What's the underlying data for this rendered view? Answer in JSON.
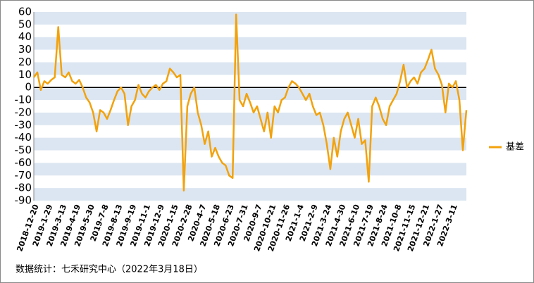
{
  "chart_data": {
    "type": "line",
    "categories": [
      "2018-12-20",
      null,
      null,
      null,
      "2019-1-29",
      null,
      null,
      null,
      "2019-3-13",
      null,
      null,
      null,
      "2019-4-19",
      null,
      null,
      null,
      "2019-5-30",
      null,
      null,
      null,
      "2019-7-8",
      null,
      null,
      null,
      "2019-8-13",
      null,
      null,
      null,
      "2019-9-19",
      null,
      null,
      null,
      "2019-11-1",
      null,
      null,
      null,
      "2019-12-9",
      null,
      null,
      null,
      "2020-1-15",
      null,
      null,
      null,
      "2020-2-28",
      null,
      null,
      null,
      "2020-4-7",
      null,
      null,
      null,
      "2020-5-18",
      null,
      null,
      null,
      "2020-6-23",
      null,
      null,
      null,
      "2020-7-31",
      null,
      null,
      null,
      "2020-9-7",
      null,
      null,
      null,
      "2020-10-21",
      null,
      null,
      null,
      "2020-11-26",
      null,
      null,
      null,
      "2021-1-4",
      null,
      null,
      null,
      "2021-2-9",
      null,
      null,
      null,
      "2021-3-24",
      null,
      null,
      null,
      "2021-4-30",
      null,
      null,
      null,
      "2021-6-10",
      null,
      null,
      null,
      "2021-7-19",
      null,
      null,
      null,
      "2021-8-24",
      null,
      null,
      null,
      "2021-10-8",
      null,
      null,
      null,
      "2021-11-15",
      null,
      null,
      null,
      "2021-12-21",
      null,
      null,
      null,
      "2022-1-27",
      null,
      null,
      null,
      "2022-3-11",
      null,
      null,
      null,
      null
    ],
    "series": [
      {
        "name": "基差",
        "color": "#f2a20c",
        "values": [
          8,
          12,
          -2,
          5,
          3,
          6,
          8,
          48,
          10,
          8,
          12,
          5,
          3,
          6,
          0,
          -8,
          -12,
          -20,
          -35,
          -18,
          -20,
          -25,
          -18,
          -10,
          -3,
          0,
          -5,
          -30,
          -15,
          -10,
          2,
          -5,
          -8,
          -3,
          0,
          2,
          -2,
          3,
          5,
          15,
          12,
          8,
          10,
          -82,
          -15,
          -5,
          0,
          -20,
          -30,
          -45,
          -35,
          -55,
          -48,
          -55,
          -60,
          -62,
          -70,
          -72,
          58,
          -10,
          -15,
          -5,
          -12,
          -20,
          -15,
          -25,
          -35,
          -20,
          -40,
          -15,
          -20,
          -10,
          -8,
          0,
          5,
          3,
          0,
          -5,
          -10,
          -5,
          -15,
          -22,
          -20,
          -30,
          -45,
          -65,
          -40,
          -55,
          -35,
          -25,
          -20,
          -30,
          -40,
          -25,
          -45,
          -42,
          -75,
          -15,
          -8,
          -15,
          -25,
          -30,
          -15,
          -10,
          -5,
          5,
          18,
          0,
          5,
          8,
          3,
          12,
          15,
          22,
          30,
          15,
          10,
          2,
          -20,
          3,
          0,
          5,
          -10,
          -50,
          -18
        ]
      }
    ],
    "ylim": [
      -90,
      60
    ],
    "yticks": [
      60,
      50,
      40,
      30,
      20,
      10,
      0,
      -10,
      -20,
      -30,
      -40,
      -50,
      -60,
      -70,
      -80,
      -90
    ],
    "grid": true,
    "band_color": "#dce6f2",
    "legend": "right",
    "source": "数据统计：七禾研究中心（2022年3月18日）"
  }
}
